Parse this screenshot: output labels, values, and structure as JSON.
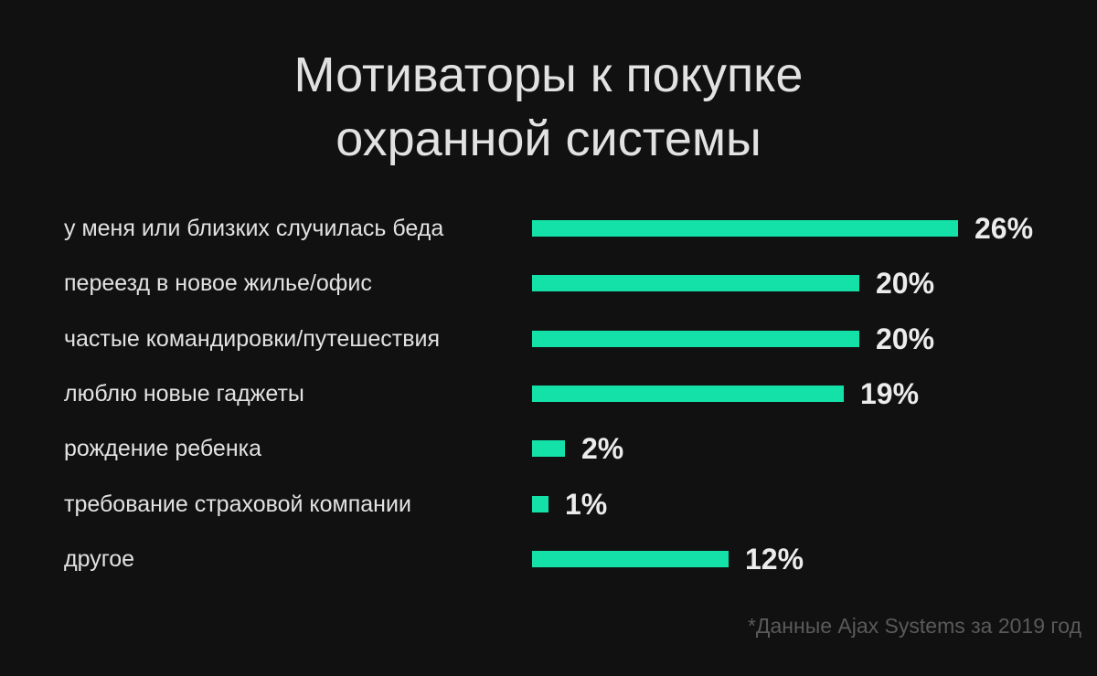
{
  "colors": {
    "background": "#111111",
    "bar": "#13e1a8",
    "text": "#e2e2e2",
    "footnote": "#5a5a5a"
  },
  "chart_data": {
    "type": "bar",
    "orientation": "horizontal",
    "title_lines": [
      "Мотиваторы к покупке",
      "охранной системы"
    ],
    "categories": [
      "у меня или близких случилась беда",
      "переезд в новое жилье/офис",
      "частые командировки/путешествия",
      "люблю новые гаджеты",
      "рождение ребенка",
      "требование страховой компании",
      "другое"
    ],
    "values": [
      26,
      20,
      20,
      19,
      2,
      1,
      12
    ],
    "value_labels": [
      "26%",
      "20%",
      "20%",
      "19%",
      "2%",
      "1%",
      "12%"
    ],
    "unit": "%",
    "xlim": [
      0,
      26
    ],
    "grid": false,
    "legend": "none"
  },
  "footnote": "*Данные Ajax Systems за 2019 год"
}
